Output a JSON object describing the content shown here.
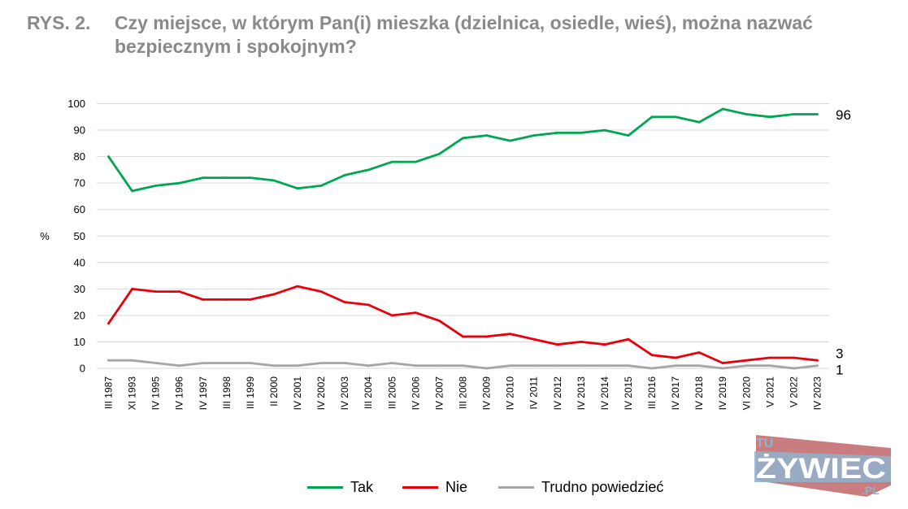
{
  "figure": {
    "number": "RYS. 2.",
    "title": "Czy miejsce, w którym Pan(i) mieszka (dzielnica, osiedle, wieś), można nazwać bezpiecznym i spokojnym?"
  },
  "logo": {
    "top": "TU",
    "main": "ŻYWIEC",
    "suffix": ".PL"
  },
  "chart_data": {
    "type": "line",
    "ylabel": "%",
    "ylim": [
      0,
      100
    ],
    "yticks": [
      0,
      10,
      20,
      30,
      40,
      50,
      60,
      70,
      80,
      90,
      100
    ],
    "grid": true,
    "legend_position": "bottom",
    "categories": [
      "III 1987",
      "XI 1993",
      "IV 1995",
      "IV 1996",
      "IV 1997",
      "III 1998",
      "III 1999",
      "II 2000",
      "IV 2001",
      "IV 2002",
      "IV 2003",
      "III 2004",
      "III 2005",
      "IV 2006",
      "IV 2007",
      "III 2008",
      "IV 2009",
      "IV 2010",
      "IV 2011",
      "IV 2012",
      "IV 2013",
      "IV 2014",
      "IV 2015",
      "III 2016",
      "IV 2017",
      "IV 2018",
      "IV 2019",
      "VI 2020",
      "V 2021",
      "V 2022",
      "IV 2023"
    ],
    "series": [
      {
        "name": "Tak",
        "color": "#00a650",
        "end_label": "96",
        "values": [
          80,
          67,
          69,
          70,
          72,
          72,
          72,
          71,
          68,
          69,
          73,
          75,
          78,
          78,
          81,
          87,
          88,
          86,
          88,
          89,
          89,
          90,
          88,
          95,
          95,
          93,
          98,
          96,
          95,
          96,
          96
        ]
      },
      {
        "name": "Nie",
        "color": "#e8000b",
        "end_label": "3",
        "values": [
          17,
          30,
          29,
          29,
          26,
          26,
          26,
          28,
          31,
          29,
          25,
          24,
          20,
          21,
          18,
          12,
          12,
          13,
          11,
          9,
          10,
          9,
          11,
          5,
          4,
          6,
          2,
          3,
          4,
          4,
          3
        ]
      },
      {
        "name": "Trudno powiedzieć",
        "color": "#a6a6a6",
        "end_label": "1",
        "values": [
          3,
          3,
          2,
          1,
          2,
          2,
          2,
          1,
          1,
          2,
          2,
          1,
          2,
          1,
          1,
          1,
          0,
          1,
          1,
          1,
          1,
          1,
          1,
          0,
          1,
          1,
          0,
          1,
          1,
          0,
          1
        ]
      }
    ]
  }
}
